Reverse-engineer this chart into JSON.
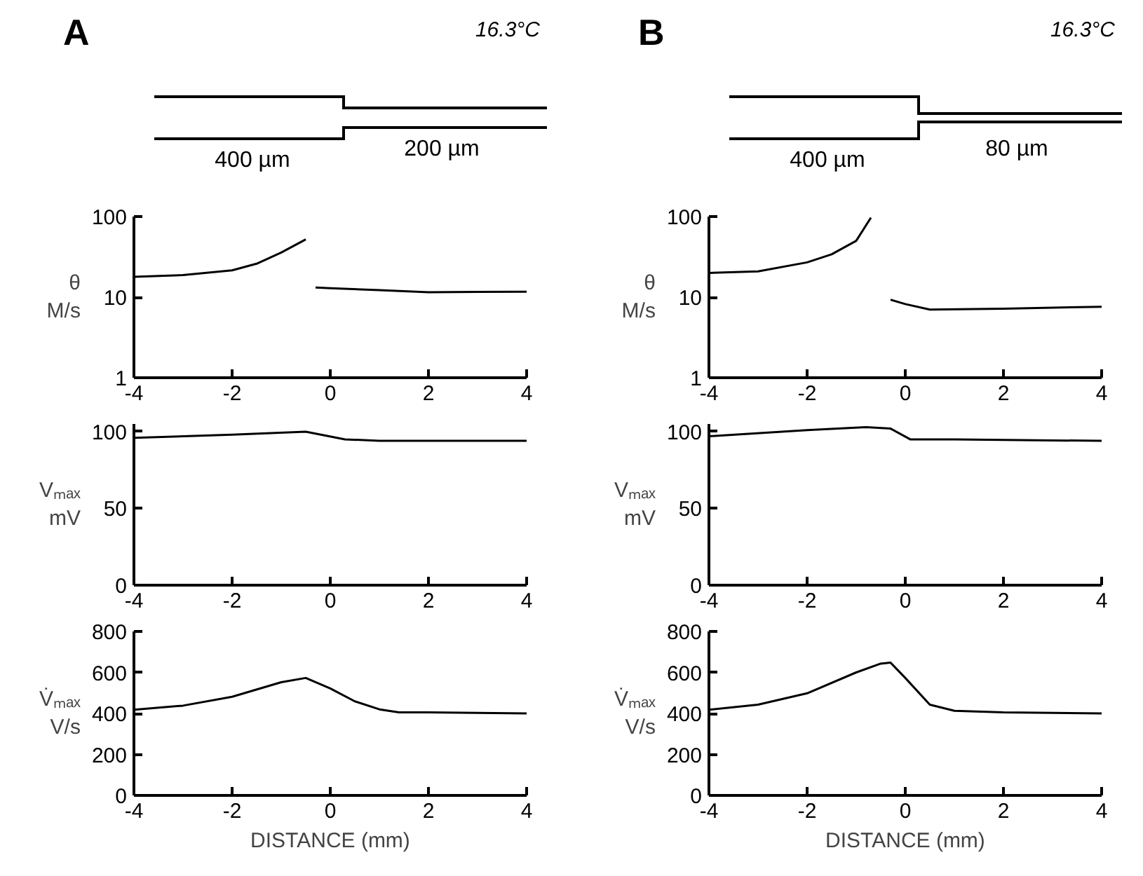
{
  "chart_data": [
    {
      "type": "line",
      "title": "A",
      "subtitle": "16.3°C",
      "annotations": [
        "400 µm",
        "200 µm"
      ],
      "ylabel": "θ\nM/s",
      "log": "y",
      "xlim": [
        -4,
        4
      ],
      "xticks": [
        -4,
        -2,
        0,
        2,
        4
      ],
      "ylim": [
        1,
        100
      ],
      "yticks": [
        1,
        10,
        100
      ],
      "x": [
        -4,
        -3,
        -2,
        -1.5,
        -1,
        -0.5,
        -0.4,
        -0.3,
        0,
        1,
        2,
        3,
        4
      ],
      "series": [
        {
          "color": "#000000",
          "values": [
            17.9,
            18.8,
            21.5,
            26,
            35.8,
            52,
            null,
            13.2,
            12.9,
            12.2,
            11.5,
            11.6,
            11.7
          ]
        }
      ]
    },
    {
      "type": "line",
      "ylabel": "Vₘₐₓ\nmV",
      "xlim": [
        -4,
        4
      ],
      "xticks": [
        -4,
        -2,
        0,
        2,
        4
      ],
      "ylim": [
        0,
        105
      ],
      "yticks": [
        0,
        50,
        100
      ],
      "x": [
        -4,
        -2,
        -0.5,
        0.3,
        1,
        4
      ],
      "series": [
        {
          "color": "#000000",
          "values": [
            96,
            98,
            100,
            95,
            94,
            94
          ]
        }
      ]
    },
    {
      "type": "line",
      "ylabel": "V̇ₘₐₓ\nV/s",
      "xlabel": "DISTANCE (mm)",
      "xlim": [
        -4,
        4
      ],
      "xticks": [
        -4,
        -2,
        0,
        2,
        4
      ],
      "ylim": [
        0,
        800
      ],
      "yticks": [
        0,
        200,
        400,
        600,
        800
      ],
      "x": [
        -4,
        -3,
        -2,
        -1,
        -0.5,
        0,
        0.5,
        1,
        1.4,
        2,
        4
      ],
      "series": [
        {
          "color": "#000000",
          "values": [
            418,
            438,
            481,
            552,
            573,
            522,
            459,
            420,
            405,
            405,
            400
          ]
        }
      ]
    },
    {
      "type": "line",
      "title": "B",
      "subtitle": "16.3°C",
      "annotations": [
        "400 µm",
        "80 µm"
      ],
      "ylabel": "θ\nM/s",
      "log": "y",
      "xlim": [
        -4,
        4
      ],
      "xticks": [
        -4,
        -2,
        0,
        2,
        4
      ],
      "ylim": [
        1,
        100
      ],
      "yticks": [
        1,
        10,
        100
      ],
      "x": [
        -4,
        -3,
        -2,
        -1.5,
        -1,
        -0.7,
        -0.5,
        -0.3,
        0,
        0.5,
        2,
        4
      ],
      "series": [
        {
          "color": "#000000",
          "values": [
            20,
            20.9,
            27,
            34,
            50,
            97,
            null,
            9.3,
            8.2,
            7.0,
            7.2,
            7.6
          ]
        }
      ]
    },
    {
      "type": "line",
      "ylabel": "Vₘₐₓ\nmV",
      "xlim": [
        -4,
        4
      ],
      "xticks": [
        -4,
        -2,
        0,
        2,
        4
      ],
      "ylim": [
        0,
        105
      ],
      "yticks": [
        0,
        50,
        100
      ],
      "x": [
        -4,
        -2,
        -0.8,
        -0.3,
        0.1,
        1,
        4
      ],
      "series": [
        {
          "color": "#000000",
          "values": [
            97,
            101,
            103,
            102,
            95,
            95,
            94
          ]
        }
      ]
    },
    {
      "type": "line",
      "ylabel": "V̇ₘₐₓ\nV/s",
      "xlabel": "DISTANCE (mm)",
      "xlim": [
        -4,
        4
      ],
      "xticks": [
        -4,
        -2,
        0,
        2,
        4
      ],
      "ylim": [
        0,
        800
      ],
      "yticks": [
        0,
        200,
        400,
        600,
        800
      ],
      "x": [
        -4,
        -3,
        -2,
        -1,
        -0.5,
        -0.3,
        0,
        0.5,
        1,
        2,
        4
      ],
      "series": [
        {
          "color": "#000000",
          "values": [
            418,
            443,
            498,
            600,
            643,
            648,
            573,
            443,
            413,
            405,
            400
          ]
        }
      ]
    }
  ]
}
